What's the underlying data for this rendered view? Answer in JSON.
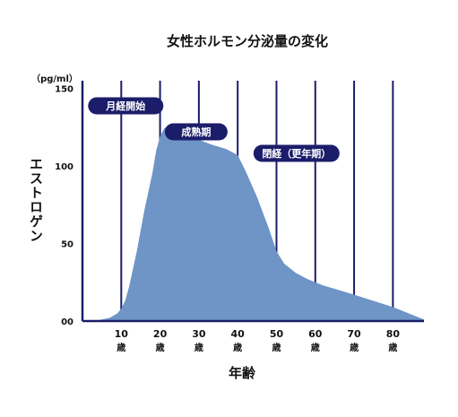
{
  "chart_data": {
    "type": "area",
    "title": "女性ホルモン分泌量の変化",
    "ylabel": "エストロゲン",
    "yunit": "（pg/ml）",
    "xlabel": "年齢",
    "xlim": [
      0,
      88
    ],
    "ylim": [
      0,
      155
    ],
    "y_ticks": [
      "00",
      "50",
      "100",
      "150"
    ],
    "y_tick_values": [
      0,
      50,
      100,
      150
    ],
    "x_ticks": [
      {
        "value": 10,
        "num": "10",
        "unit": "歳"
      },
      {
        "value": 20,
        "num": "20",
        "unit": "歳"
      },
      {
        "value": 30,
        "num": "30",
        "unit": "歳"
      },
      {
        "value": 40,
        "num": "40",
        "unit": "歳"
      },
      {
        "value": 50,
        "num": "50",
        "unit": "歳"
      },
      {
        "value": 60,
        "num": "60",
        "unit": "歳"
      },
      {
        "value": 70,
        "num": "70",
        "unit": "歳"
      },
      {
        "value": 80,
        "num": "80",
        "unit": "歳"
      }
    ],
    "grid": true,
    "series": [
      {
        "x": [
          0,
          4,
          7,
          9,
          10,
          11,
          12,
          14,
          16,
          18,
          19,
          20,
          21,
          22,
          23,
          25,
          27,
          30,
          33,
          37,
          40,
          42,
          45,
          48,
          50,
          52,
          55,
          58,
          62,
          66,
          70,
          75,
          80,
          84,
          88
        ],
        "y": [
          0,
          0.5,
          2,
          5,
          8,
          13,
          22,
          45,
          72,
          95,
          110,
          119,
          124,
          126,
          127,
          126,
          122,
          117,
          114,
          111,
          107,
          97,
          80,
          60,
          45,
          37,
          31,
          27,
          23,
          20,
          17,
          13,
          9,
          5,
          1
        ]
      }
    ],
    "annotations": [
      {
        "text": "月経開始",
        "x": 10
      },
      {
        "text": "成熟期",
        "x": 30
      },
      {
        "text": "閉経（更年期）",
        "x": 48
      }
    ],
    "colors": {
      "area": "#6f94c6",
      "gridline": "#1b1d6a",
      "badge": "#1b1d6a",
      "badge_text": "#ffffff"
    }
  }
}
